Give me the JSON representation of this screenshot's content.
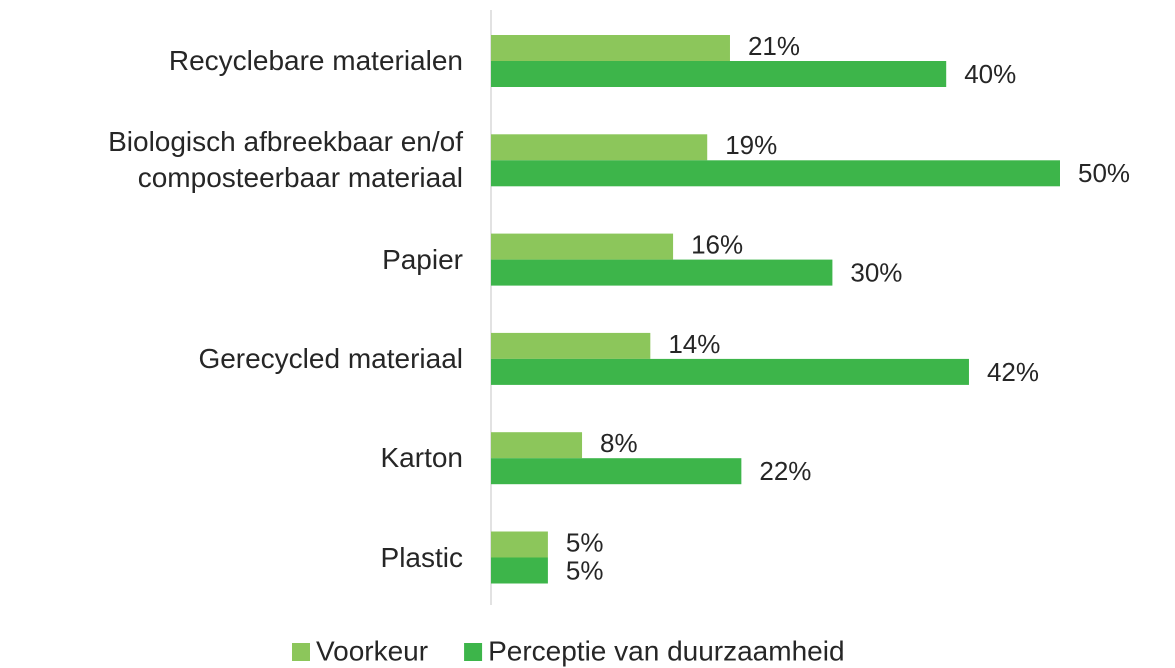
{
  "chart_data": {
    "type": "bar",
    "orientation": "horizontal",
    "categories": [
      "Recyclebare materialen",
      "Biologisch afbreekbaar en/of composteerbaar materiaal",
      "Papier",
      "Gerecycled materiaal",
      "Karton",
      "Plastic"
    ],
    "series": [
      {
        "name": "Voorkeur",
        "color": "#8cc65b",
        "values": [
          21,
          19,
          16,
          14,
          8,
          5
        ],
        "value_labels": [
          "21%",
          "19%",
          "16%",
          "14%",
          "8%",
          "5%"
        ]
      },
      {
        "name": "Perceptie van duurzaamheid",
        "color": "#3db54a",
        "values": [
          40,
          50,
          30,
          42,
          22,
          5
        ],
        "value_labels": [
          "40%",
          "50%",
          "30%",
          "42%",
          "22%",
          "5%"
        ]
      }
    ],
    "legend": "bottom"
  }
}
